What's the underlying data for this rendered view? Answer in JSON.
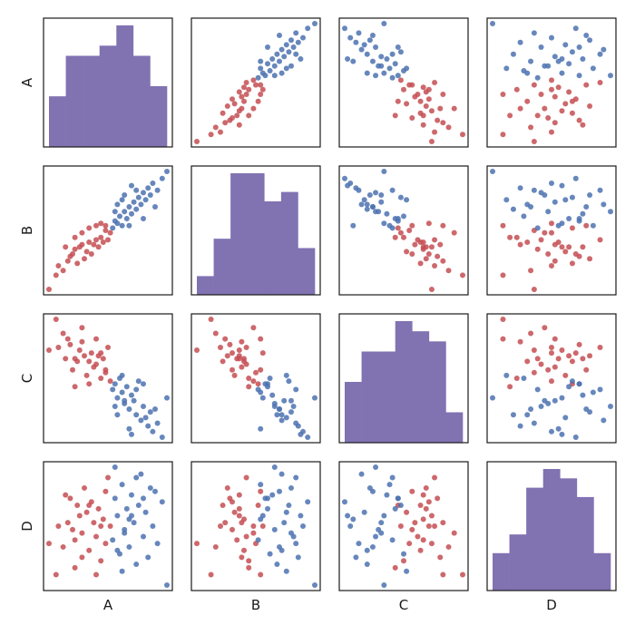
{
  "chart_data": {
    "type": "scatter-matrix",
    "variables": [
      "A",
      "B",
      "C",
      "D"
    ],
    "diagonal": "histogram",
    "grid": false,
    "legend": "none",
    "colors": {
      "group_red": "#c44e52",
      "group_blue": "#4c72b0",
      "histogram": "#8172b2",
      "axes": "#1a1a1a"
    },
    "groups": [
      {
        "color": "group_red",
        "points": [
          [
            -2.6,
            -2.4,
            0.5,
            -0.4
          ],
          [
            -2.3,
            -1.8,
            1.6,
            -1.3
          ],
          [
            -2.2,
            -1.4,
            0.6,
            0.1
          ],
          [
            -2.0,
            -1.6,
            1.1,
            -0.5
          ],
          [
            -1.8,
            -1.2,
            0.9,
            0.2
          ],
          [
            -1.7,
            -1.0,
            0.7,
            0.9
          ],
          [
            -1.6,
            -0.9,
            -0.2,
            0.0
          ],
          [
            -1.5,
            -0.7,
            0.2,
            -0.3
          ],
          [
            -1.4,
            -1.3,
            0.1,
            0.7
          ],
          [
            -1.3,
            -0.6,
            0.5,
            0.4
          ],
          [
            -1.2,
            -0.5,
            0.8,
            -0.8
          ],
          [
            -1.1,
            -1.1,
            0.3,
            1.2
          ],
          [
            -1.0,
            -0.8,
            -0.4,
            0.5
          ],
          [
            -0.9,
            -0.4,
            0.1,
            -0.6
          ],
          [
            -0.8,
            -0.9,
            0.4,
            0.8
          ],
          [
            -0.7,
            -0.5,
            -0.1,
            0.2
          ],
          [
            -0.6,
            -0.3,
            0.0,
            -0.2
          ],
          [
            -0.5,
            -0.6,
            0.3,
            0.6
          ],
          [
            -0.4,
            -0.2,
            -0.5,
            -0.9
          ],
          [
            -0.3,
            -0.4,
            0.2,
            0.3
          ],
          [
            -0.2,
            0.1,
            -0.3,
            -0.4
          ],
          [
            -0.1,
            -0.3,
            0.6,
            1.5
          ],
          [
            0.0,
            0.0,
            -0.6,
            0.1
          ],
          [
            -1.5,
            -0.2,
            -0.8,
            -1.1
          ],
          [
            -0.9,
            0.2,
            -0.7,
            0.7
          ],
          [
            -0.6,
            0.3,
            0.9,
            -1.3
          ],
          [
            -1.9,
            -0.6,
            0.2,
            1.0
          ],
          [
            -0.4,
            0.4,
            0.4,
            0.1
          ],
          [
            -1.2,
            0.0,
            1.3,
            -0.1
          ],
          [
            -0.2,
            0.3,
            -0.2,
            1.1
          ]
        ]
      },
      {
        "color": "group_blue",
        "points": [
          [
            0.1,
            0.2,
            -0.9,
            -0.3
          ],
          [
            0.2,
            0.5,
            -0.7,
            0.9
          ],
          [
            0.3,
            0.4,
            -1.2,
            0.4
          ],
          [
            0.4,
            0.7,
            -0.5,
            -0.7
          ],
          [
            0.5,
            0.3,
            -1.0,
            1.3
          ],
          [
            0.6,
            0.9,
            -1.4,
            0.0
          ],
          [
            0.7,
            0.6,
            -0.8,
            0.6
          ],
          [
            0.8,
            1.1,
            -1.6,
            -0.5
          ],
          [
            0.9,
            0.8,
            -1.1,
            1.0
          ],
          [
            1.0,
            1.3,
            -1.3,
            0.2
          ],
          [
            1.1,
            1.0,
            -1.8,
            -1.0
          ],
          [
            1.2,
            1.5,
            -0.6,
            0.7
          ],
          [
            1.3,
            1.2,
            -2.0,
            1.6
          ],
          [
            1.4,
            1.7,
            -1.5,
            -0.2
          ],
          [
            1.5,
            1.4,
            -1.9,
            0.5
          ],
          [
            1.6,
            1.9,
            -2.2,
            -0.8
          ],
          [
            1.7,
            1.6,
            -1.7,
            1.2
          ],
          [
            1.8,
            2.1,
            -2.4,
            0.1
          ],
          [
            2.0,
            1.8,
            -2.1,
            -0.4
          ],
          [
            2.2,
            2.3,
            -2.6,
            0.8
          ],
          [
            2.4,
            2.6,
            -1.2,
            -1.6
          ],
          [
            0.2,
            0.9,
            -1.5,
            1.8
          ],
          [
            0.5,
            1.4,
            -0.4,
            -1.2
          ],
          [
            0.8,
            0.3,
            -2.3,
            0.3
          ],
          [
            1.1,
            1.8,
            -0.9,
            1.5
          ],
          [
            0.3,
            1.2,
            -1.8,
            -0.6
          ],
          [
            1.4,
            0.6,
            -0.7,
            0.9
          ],
          [
            0.6,
            1.6,
            -1.3,
            -0.1
          ],
          [
            1.9,
            1.1,
            -1.6,
            1.1
          ],
          [
            0.9,
            2.0,
            -2.5,
            0.4
          ]
        ]
      }
    ]
  }
}
